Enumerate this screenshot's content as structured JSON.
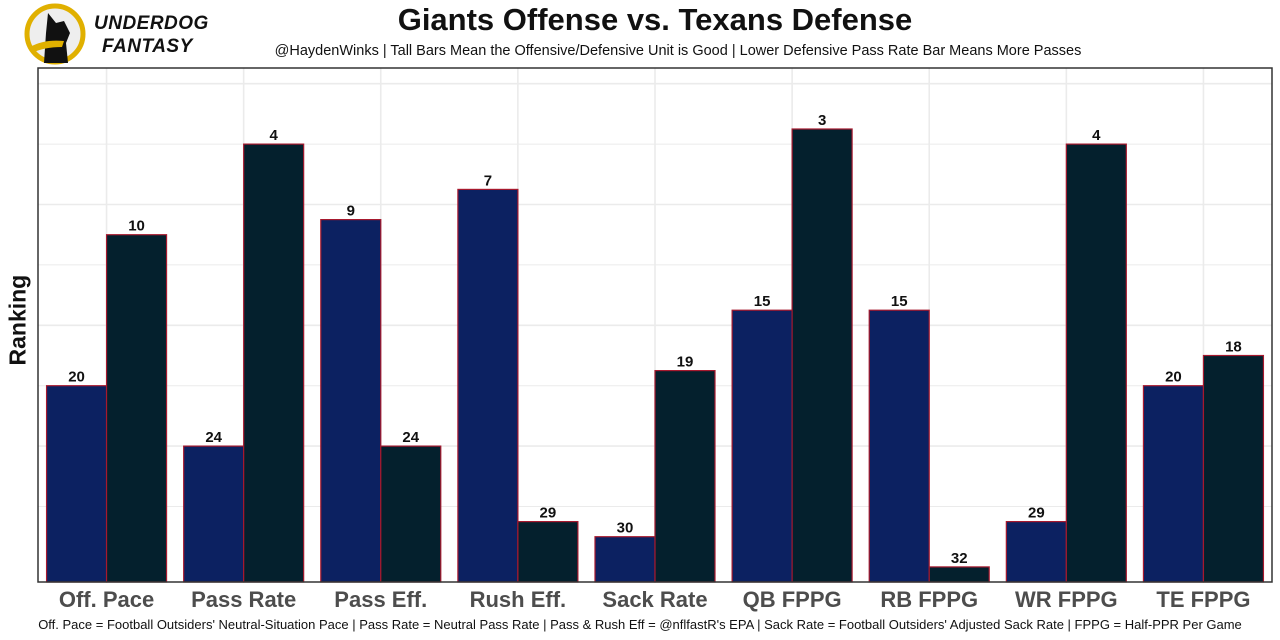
{
  "header": {
    "title": "Giants Offense vs. Texans Defense",
    "subtitle": "@HaydenWinks | Tall Bars Mean the Offensive/Defensive Unit is Good | Lower Defensive Pass Rate Bar Means More Passes",
    "logo_line1": "UNDERDOG",
    "logo_line2": "FANTASY"
  },
  "footer": "Off. Pace = Football Outsiders' Neutral-Situation Pace | Pass Rate = Neutral Pass Rate | Pass & Rush Eff = @nflfastR's EPA | Sack Rate = Football Outsiders' Adjusted Sack Rate | FPPG = Half-PPR Per Game",
  "chart_data": {
    "type": "bar",
    "ylabel": "Ranking",
    "categories": [
      "Off. Pace",
      "Pass Rate",
      "Pass Eff.",
      "Rush Eff.",
      "Sack Rate",
      "QB FPPG",
      "RB FPPG",
      "WR FPPG",
      "TE FPPG"
    ],
    "series": [
      {
        "values": [
          20,
          24,
          9,
          7,
          30,
          15,
          15,
          29,
          20
        ],
        "color": "#0c2161"
      },
      {
        "values": [
          10,
          4,
          24,
          29,
          19,
          3,
          32,
          4,
          18
        ],
        "color": "#04202d"
      }
    ],
    "bar_outline": "#a6192e",
    "y_scale": "reversed rank (1 = tallest, 32 = shortest)",
    "grid": true
  }
}
